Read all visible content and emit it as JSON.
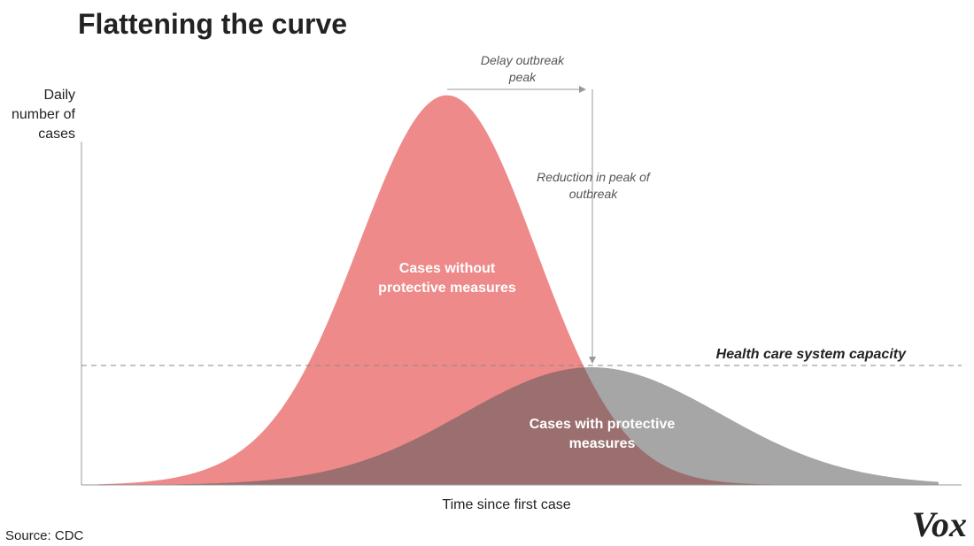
{
  "title": "Flattening the curve",
  "y_axis_label": [
    "Daily",
    "number of",
    "cases"
  ],
  "x_axis_label": "Time since first case",
  "annotations": {
    "delay": [
      "Delay outbreak",
      "peak"
    ],
    "reduction": [
      "Reduction in peak of",
      "outbreak"
    ],
    "capacity": "Health care system capacity",
    "without": [
      "Cases without",
      "protective measures"
    ],
    "with": [
      "Cases with protective",
      "measures"
    ]
  },
  "source": "Source: CDC",
  "logo": "Vox"
}
